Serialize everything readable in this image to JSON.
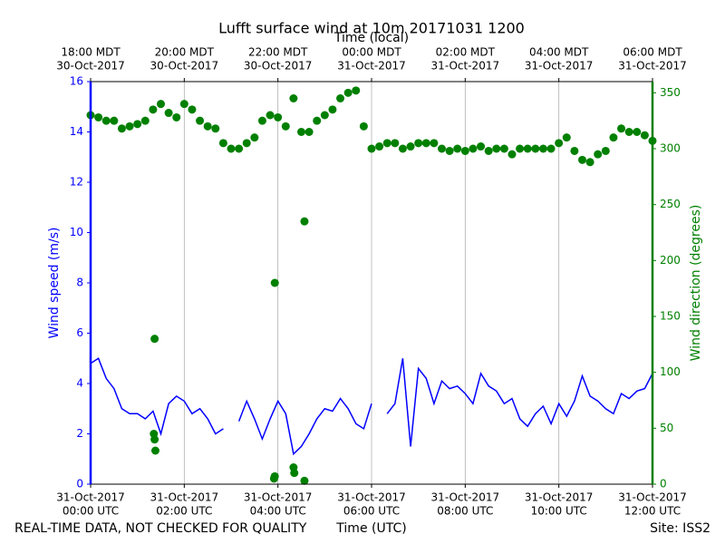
{
  "chart_data": {
    "type": "line-scatter",
    "title": "Lufft surface wind at 10m 20171031 1200",
    "x2label": "Time (local)",
    "xlabel": "Time (UTC)",
    "ylabel": "Wind speed (m/s)",
    "y2label": "Wind direction (degrees)",
    "note_left": "REAL-TIME DATA, NOT CHECKED FOR QUALITY",
    "note_right": "Site: ISS2",
    "grid": true,
    "xlim": [
      "2017-10-31 00:00",
      "2017-10-31 12:00"
    ],
    "xticks": [
      {
        "value": "2017-10-31 00:00",
        "label": [
          "31-Oct-2017",
          "00:00 UTC"
        ]
      },
      {
        "value": "2017-10-31 02:00",
        "label": [
          "31-Oct-2017",
          "02:00 UTC"
        ]
      },
      {
        "value": "2017-10-31 04:00",
        "label": [
          "31-Oct-2017",
          "04:00 UTC"
        ]
      },
      {
        "value": "2017-10-31 06:00",
        "label": [
          "31-Oct-2017",
          "06:00 UTC"
        ]
      },
      {
        "value": "2017-10-31 08:00",
        "label": [
          "31-Oct-2017",
          "08:00 UTC"
        ]
      },
      {
        "value": "2017-10-31 10:00",
        "label": [
          "31-Oct-2017",
          "10:00 UTC"
        ]
      },
      {
        "value": "2017-10-31 12:00",
        "label": [
          "31-Oct-2017",
          "12:00 UTC"
        ]
      }
    ],
    "x2ticks": [
      {
        "value": "2017-10-31 00:00",
        "label": [
          "18:00 MDT",
          "30-Oct-2017"
        ]
      },
      {
        "value": "2017-10-31 02:00",
        "label": [
          "20:00 MDT",
          "30-Oct-2017"
        ]
      },
      {
        "value": "2017-10-31 04:00",
        "label": [
          "22:00 MDT",
          "30-Oct-2017"
        ]
      },
      {
        "value": "2017-10-31 06:00",
        "label": [
          "00:00 MDT",
          "31-Oct-2017"
        ]
      },
      {
        "value": "2017-10-31 08:00",
        "label": [
          "02:00 MDT",
          "31-Oct-2017"
        ]
      },
      {
        "value": "2017-10-31 10:00",
        "label": [
          "04:00 MDT",
          "31-Oct-2017"
        ]
      },
      {
        "value": "2017-10-31 12:00",
        "label": [
          "06:00 MDT",
          "31-Oct-2017"
        ]
      }
    ],
    "ylim": [
      0,
      16
    ],
    "yticks": [
      0,
      2,
      4,
      6,
      8,
      10,
      12,
      14,
      16
    ],
    "y2lim": [
      0,
      360
    ],
    "y2ticks": [
      0,
      50,
      100,
      150,
      200,
      250,
      300,
      350
    ],
    "x": [
      "2017-10-31 00:00",
      "2017-10-31 00:10",
      "2017-10-31 00:20",
      "2017-10-31 00:30",
      "2017-10-31 00:40",
      "2017-10-31 00:50",
      "2017-10-31 01:00",
      "2017-10-31 01:10",
      "2017-10-31 01:20",
      "2017-10-31 01:30",
      "2017-10-31 01:40",
      "2017-10-31 01:50",
      "2017-10-31 02:00",
      "2017-10-31 02:10",
      "2017-10-31 02:20",
      "2017-10-31 02:30",
      "2017-10-31 02:40",
      "2017-10-31 02:50",
      "2017-10-31 03:00",
      "2017-10-31 03:10",
      "2017-10-31 03:20",
      "2017-10-31 03:30",
      "2017-10-31 03:40",
      "2017-10-31 03:50",
      "2017-10-31 04:00",
      "2017-10-31 04:10",
      "2017-10-31 04:20",
      "2017-10-31 04:30",
      "2017-10-31 04:40",
      "2017-10-31 04:50",
      "2017-10-31 05:00",
      "2017-10-31 05:10",
      "2017-10-31 05:20",
      "2017-10-31 05:30",
      "2017-10-31 05:40",
      "2017-10-31 05:50",
      "2017-10-31 06:00",
      "2017-10-31 06:10",
      "2017-10-31 06:20",
      "2017-10-31 06:30",
      "2017-10-31 06:40",
      "2017-10-31 06:50",
      "2017-10-31 07:00",
      "2017-10-31 07:10",
      "2017-10-31 07:20",
      "2017-10-31 07:30",
      "2017-10-31 07:40",
      "2017-10-31 07:50",
      "2017-10-31 08:00",
      "2017-10-31 08:10",
      "2017-10-31 08:20",
      "2017-10-31 08:30",
      "2017-10-31 08:40",
      "2017-10-31 08:50",
      "2017-10-31 09:00",
      "2017-10-31 09:10",
      "2017-10-31 09:20",
      "2017-10-31 09:30",
      "2017-10-31 09:40",
      "2017-10-31 09:50",
      "2017-10-31 10:00",
      "2017-10-31 10:10",
      "2017-10-31 10:20",
      "2017-10-31 10:30",
      "2017-10-31 10:40",
      "2017-10-31 10:50",
      "2017-10-31 11:00",
      "2017-10-31 11:10",
      "2017-10-31 11:20",
      "2017-10-31 11:30",
      "2017-10-31 11:40",
      "2017-10-31 11:50",
      "2017-10-31 12:00"
    ],
    "series": [
      {
        "kind": "line",
        "color": "#0000ff",
        "axis": "y",
        "values": [
          4.8,
          5.0,
          4.2,
          3.8,
          3.0,
          2.8,
          2.8,
          2.6,
          2.9,
          2.0,
          3.2,
          3.5,
          3.3,
          2.8,
          3.0,
          2.6,
          2.0,
          2.2,
          null,
          2.5,
          3.3,
          2.6,
          1.8,
          2.6,
          3.3,
          2.8,
          1.2,
          1.5,
          2.0,
          2.6,
          3.0,
          2.9,
          3.4,
          3.0,
          2.4,
          2.2,
          3.2,
          null,
          2.8,
          3.2,
          5.0,
          1.5,
          4.6,
          4.2,
          3.2,
          4.1,
          3.8,
          3.9,
          3.6,
          3.2,
          4.4,
          3.9,
          3.7,
          3.2,
          3.4,
          2.6,
          2.3,
          2.8,
          3.1,
          2.4,
          3.2,
          2.7,
          3.3,
          4.3,
          3.5,
          3.3,
          3.0,
          2.8,
          3.6,
          3.4,
          3.7,
          3.8,
          4.4
        ]
      },
      {
        "kind": "scatter",
        "color": "#008000",
        "axis": "y2",
        "values": [
          330,
          328,
          325,
          325,
          318,
          320,
          322,
          325,
          335,
          340,
          332,
          328,
          340,
          335,
          325,
          320,
          318,
          305,
          300,
          300,
          305,
          310,
          325,
          330,
          328,
          320,
          345,
          315,
          315,
          325,
          330,
          335,
          345,
          350,
          352,
          320,
          300,
          302,
          305,
          305,
          300,
          302,
          305,
          305,
          305,
          300,
          298,
          300,
          298,
          300,
          302,
          298,
          300,
          300,
          295,
          300,
          300,
          300,
          300,
          300,
          305,
          310,
          298,
          290,
          288,
          295,
          298,
          310,
          318,
          315,
          315,
          312,
          307
        ]
      },
      {
        "kind": "scatter",
        "color": "#008000",
        "axis": "y2",
        "x": [
          "2017-10-31 01:22",
          "2017-10-31 01:21",
          "2017-10-31 01:22",
          "2017-10-31 01:23",
          "2017-10-31 03:56",
          "2017-10-31 03:55",
          "2017-10-31 03:56",
          "2017-10-31 04:34",
          "2017-10-31 04:20",
          "2017-10-31 04:21",
          "2017-10-31 04:34"
        ],
        "values": [
          130,
          45,
          40,
          30,
          180,
          5,
          7,
          235,
          15,
          10,
          3
        ]
      }
    ]
  }
}
